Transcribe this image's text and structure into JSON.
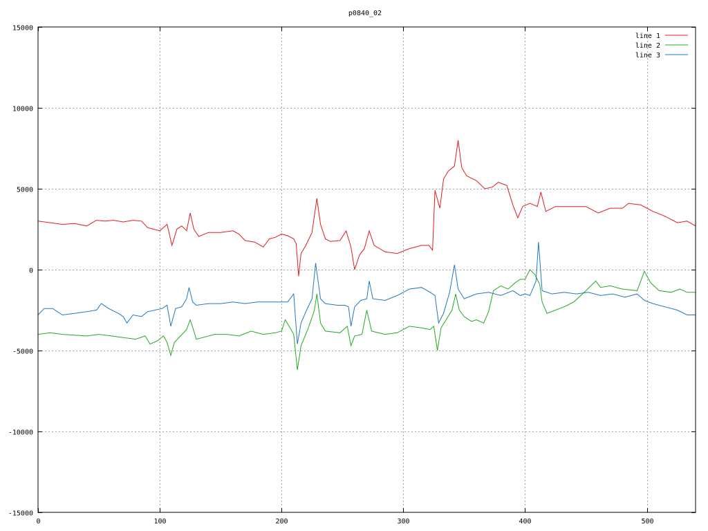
{
  "chart_data": {
    "type": "line",
    "title": "p0840_02",
    "xlabel": "",
    "ylabel": "",
    "xlim": [
      0,
      540
    ],
    "ylim": [
      -15000,
      15000
    ],
    "x_ticks": [
      0,
      100,
      200,
      300,
      400,
      500
    ],
    "y_ticks": [
      -15000,
      -10000,
      -5000,
      0,
      5000,
      10000,
      15000
    ],
    "grid": true,
    "legend_position": "top-right",
    "series": [
      {
        "name": "line 1",
        "color": "#e41a1c",
        "points": [
          [
            0,
            3000
          ],
          [
            10,
            2900
          ],
          [
            20,
            2800
          ],
          [
            30,
            2850
          ],
          [
            40,
            2700
          ],
          [
            48,
            3050
          ],
          [
            55,
            3000
          ],
          [
            62,
            3050
          ],
          [
            70,
            2950
          ],
          [
            78,
            3050
          ],
          [
            85,
            3000
          ],
          [
            90,
            2600
          ],
          [
            95,
            2500
          ],
          [
            100,
            2400
          ],
          [
            106,
            2800
          ],
          [
            110,
            1500
          ],
          [
            114,
            2500
          ],
          [
            118,
            2700
          ],
          [
            122,
            2400
          ],
          [
            125,
            3500
          ],
          [
            128,
            2500
          ],
          [
            132,
            2050
          ],
          [
            140,
            2300
          ],
          [
            150,
            2300
          ],
          [
            160,
            2400
          ],
          [
            165,
            2200
          ],
          [
            170,
            1800
          ],
          [
            178,
            1700
          ],
          [
            185,
            1400
          ],
          [
            190,
            1900
          ],
          [
            195,
            2000
          ],
          [
            200,
            2200
          ],
          [
            205,
            2100
          ],
          [
            210,
            1900
          ],
          [
            212,
            1600
          ],
          [
            214,
            -400
          ],
          [
            216,
            1000
          ],
          [
            220,
            1500
          ],
          [
            225,
            2300
          ],
          [
            229,
            4400
          ],
          [
            232,
            2800
          ],
          [
            236,
            1900
          ],
          [
            240,
            1750
          ],
          [
            248,
            1800
          ],
          [
            253,
            2400
          ],
          [
            257,
            1400
          ],
          [
            260,
            0
          ],
          [
            264,
            900
          ],
          [
            268,
            1300
          ],
          [
            272,
            2400
          ],
          [
            276,
            1500
          ],
          [
            285,
            1100
          ],
          [
            295,
            1000
          ],
          [
            305,
            1300
          ],
          [
            315,
            1500
          ],
          [
            321,
            1500
          ],
          [
            324,
            1200
          ],
          [
            326,
            4900
          ],
          [
            330,
            3800
          ],
          [
            333,
            5600
          ],
          [
            337,
            6100
          ],
          [
            342,
            6400
          ],
          [
            345,
            8000
          ],
          [
            348,
            6300
          ],
          [
            352,
            5800
          ],
          [
            360,
            5500
          ],
          [
            367,
            5000
          ],
          [
            373,
            5100
          ],
          [
            378,
            5400
          ],
          [
            385,
            5200
          ],
          [
            390,
            4000
          ],
          [
            394,
            3200
          ],
          [
            398,
            3900
          ],
          [
            404,
            4100
          ],
          [
            410,
            3900
          ],
          [
            413,
            4800
          ],
          [
            417,
            3600
          ],
          [
            425,
            3900
          ],
          [
            435,
            3900
          ],
          [
            450,
            3900
          ],
          [
            460,
            3500
          ],
          [
            470,
            3800
          ],
          [
            480,
            3800
          ],
          [
            485,
            4100
          ],
          [
            495,
            4000
          ],
          [
            505,
            3600
          ],
          [
            515,
            3300
          ],
          [
            525,
            2900
          ],
          [
            533,
            3000
          ],
          [
            540,
            2700
          ]
        ]
      },
      {
        "name": "line 2",
        "color": "#22aa22",
        "points": [
          [
            0,
            -4000
          ],
          [
            10,
            -3900
          ],
          [
            20,
            -4000
          ],
          [
            30,
            -4050
          ],
          [
            40,
            -4100
          ],
          [
            50,
            -4000
          ],
          [
            60,
            -4100
          ],
          [
            70,
            -4200
          ],
          [
            80,
            -4300
          ],
          [
            88,
            -4100
          ],
          [
            92,
            -4600
          ],
          [
            98,
            -4400
          ],
          [
            103,
            -4100
          ],
          [
            106,
            -4500
          ],
          [
            109,
            -5300
          ],
          [
            112,
            -4500
          ],
          [
            117,
            -4100
          ],
          [
            122,
            -3700
          ],
          [
            125,
            -3100
          ],
          [
            128,
            -3800
          ],
          [
            130,
            -4300
          ],
          [
            135,
            -4200
          ],
          [
            145,
            -4000
          ],
          [
            155,
            -4000
          ],
          [
            165,
            -4100
          ],
          [
            175,
            -3800
          ],
          [
            185,
            -4000
          ],
          [
            195,
            -3900
          ],
          [
            200,
            -3800
          ],
          [
            203,
            -3100
          ],
          [
            207,
            -3600
          ],
          [
            210,
            -4000
          ],
          [
            213,
            -6200
          ],
          [
            216,
            -4700
          ],
          [
            222,
            -3600
          ],
          [
            227,
            -2500
          ],
          [
            229,
            -1500
          ],
          [
            232,
            -3300
          ],
          [
            236,
            -3800
          ],
          [
            248,
            -3900
          ],
          [
            254,
            -3500
          ],
          [
            257,
            -4700
          ],
          [
            260,
            -4100
          ],
          [
            266,
            -4000
          ],
          [
            270,
            -2500
          ],
          [
            274,
            -3800
          ],
          [
            285,
            -4000
          ],
          [
            295,
            -3900
          ],
          [
            305,
            -3500
          ],
          [
            315,
            -3600
          ],
          [
            322,
            -3700
          ],
          [
            325,
            -3500
          ],
          [
            328,
            -5000
          ],
          [
            331,
            -3600
          ],
          [
            336,
            -3000
          ],
          [
            340,
            -2500
          ],
          [
            343,
            -1500
          ],
          [
            346,
            -2500
          ],
          [
            350,
            -2900
          ],
          [
            356,
            -3200
          ],
          [
            360,
            -3100
          ],
          [
            366,
            -3300
          ],
          [
            370,
            -2600
          ],
          [
            374,
            -1300
          ],
          [
            380,
            -1000
          ],
          [
            386,
            -1200
          ],
          [
            392,
            -800
          ],
          [
            396,
            -600
          ],
          [
            400,
            -600
          ],
          [
            404,
            0
          ],
          [
            408,
            -300
          ],
          [
            412,
            -900
          ],
          [
            414,
            -2000
          ],
          [
            418,
            -2700
          ],
          [
            425,
            -2500
          ],
          [
            432,
            -2300
          ],
          [
            440,
            -2000
          ],
          [
            450,
            -1300
          ],
          [
            458,
            -700
          ],
          [
            462,
            -1100
          ],
          [
            470,
            -1000
          ],
          [
            480,
            -1200
          ],
          [
            492,
            -1300
          ],
          [
            498,
            -100
          ],
          [
            503,
            -800
          ],
          [
            510,
            -1300
          ],
          [
            520,
            -1400
          ],
          [
            527,
            -1200
          ],
          [
            533,
            -1400
          ],
          [
            540,
            -1400
          ]
        ]
      },
      {
        "name": "line 3",
        "color": "#1f77c4",
        "points": [
          [
            0,
            -2800
          ],
          [
            5,
            -2400
          ],
          [
            12,
            -2400
          ],
          [
            20,
            -2800
          ],
          [
            30,
            -2700
          ],
          [
            40,
            -2600
          ],
          [
            48,
            -2500
          ],
          [
            52,
            -2100
          ],
          [
            58,
            -2400
          ],
          [
            66,
            -2700
          ],
          [
            70,
            -2900
          ],
          [
            73,
            -3300
          ],
          [
            78,
            -2800
          ],
          [
            85,
            -2900
          ],
          [
            90,
            -2600
          ],
          [
            96,
            -2500
          ],
          [
            102,
            -2400
          ],
          [
            106,
            -2200
          ],
          [
            109,
            -3500
          ],
          [
            113,
            -2400
          ],
          [
            118,
            -2300
          ],
          [
            122,
            -1800
          ],
          [
            124,
            -1100
          ],
          [
            127,
            -2000
          ],
          [
            130,
            -2200
          ],
          [
            140,
            -2100
          ],
          [
            150,
            -2100
          ],
          [
            160,
            -2000
          ],
          [
            170,
            -2100
          ],
          [
            180,
            -2000
          ],
          [
            190,
            -2000
          ],
          [
            200,
            -2000
          ],
          [
            205,
            -2000
          ],
          [
            210,
            -1500
          ],
          [
            213,
            -4600
          ],
          [
            216,
            -3300
          ],
          [
            220,
            -2600
          ],
          [
            225,
            -1800
          ],
          [
            228,
            400
          ],
          [
            232,
            -1800
          ],
          [
            236,
            -2100
          ],
          [
            246,
            -2200
          ],
          [
            252,
            -2200
          ],
          [
            255,
            -2300
          ],
          [
            257,
            -3500
          ],
          [
            260,
            -2300
          ],
          [
            265,
            -1900
          ],
          [
            270,
            -1800
          ],
          [
            272,
            -700
          ],
          [
            275,
            -1800
          ],
          [
            285,
            -1900
          ],
          [
            295,
            -1600
          ],
          [
            305,
            -1200
          ],
          [
            315,
            -1100
          ],
          [
            322,
            -1400
          ],
          [
            326,
            -1600
          ],
          [
            329,
            -3300
          ],
          [
            333,
            -2700
          ],
          [
            338,
            -1400
          ],
          [
            342,
            300
          ],
          [
            345,
            -1200
          ],
          [
            350,
            -1800
          ],
          [
            360,
            -1500
          ],
          [
            370,
            -1400
          ],
          [
            380,
            -1600
          ],
          [
            390,
            -1300
          ],
          [
            396,
            -1600
          ],
          [
            400,
            -1500
          ],
          [
            404,
            -1600
          ],
          [
            409,
            -700
          ],
          [
            411,
            1700
          ],
          [
            414,
            -1300
          ],
          [
            422,
            -1500
          ],
          [
            432,
            -1400
          ],
          [
            442,
            -1500
          ],
          [
            452,
            -1400
          ],
          [
            462,
            -1600
          ],
          [
            472,
            -1500
          ],
          [
            482,
            -1700
          ],
          [
            492,
            -1500
          ],
          [
            498,
            -1900
          ],
          [
            505,
            -2100
          ],
          [
            515,
            -2300
          ],
          [
            525,
            -2500
          ],
          [
            533,
            -2800
          ],
          [
            540,
            -2800
          ]
        ]
      }
    ]
  }
}
